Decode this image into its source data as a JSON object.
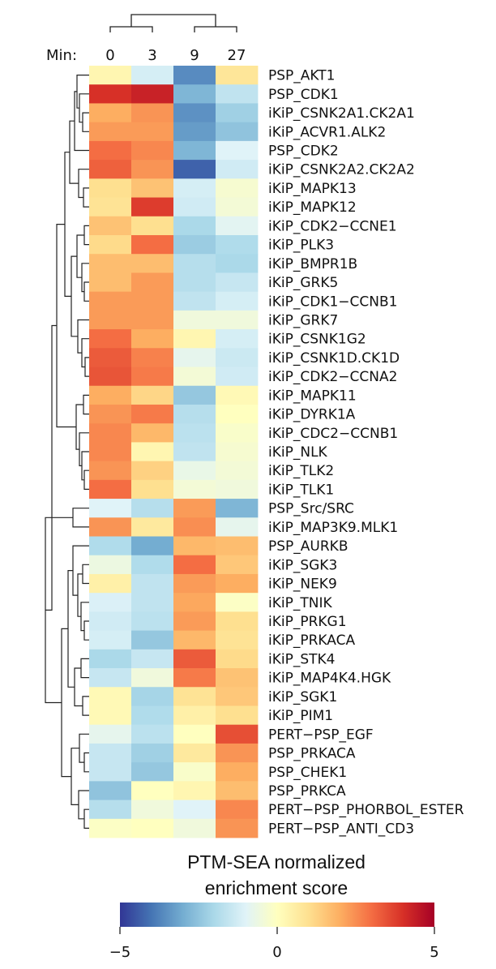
{
  "chart_data": {
    "type": "heatmap",
    "column_axis_label": "Min:",
    "columns": [
      "0",
      "3",
      "9",
      "27"
    ],
    "rows": [
      "PSP_AKT1",
      "PSP_CDK1",
      "iKiP_CSNK2A1.CK2A1",
      "iKiP_ACVR1.ALK2",
      "PSP_CDK2",
      "iKiP_CSNK2A2.CK2A2",
      "iKiP_MAPK13",
      "iKiP_MAPK12",
      "iKiP_CDK2−CCNE1",
      "iKiP_PLK3",
      "iKiP_BMPR1B",
      "iKiP_GRK5",
      "iKiP_CDK1−CCNB1",
      "iKiP_GRK7",
      "iKiP_CSNK1G2",
      "iKiP_CSNK1D.CK1D",
      "iKiP_CDK2−CCNA2",
      "iKiP_MAPK11",
      "iKiP_DYRK1A",
      "iKiP_CDC2−CCNB1",
      "iKiP_NLK",
      "iKiP_TLK2",
      "iKiP_TLK1",
      "PSP_Src/SRC",
      "iKiP_MAP3K9.MLK1",
      "PSP_AURKB",
      "iKiP_SGK3",
      "iKiP_NEK9",
      "iKiP_TNIK",
      "iKiP_PRKG1",
      "iKiP_PRKACA",
      "iKiP_STK4",
      "iKiP_MAP4K4.HGK",
      "iKiP_SGK1",
      "iKiP_PIM1",
      "PERT−PSP_EGF",
      "PSP_PRKACA",
      "PSP_CHEK1",
      "PSP_PRKCA",
      "PERT−PSP_PHORBOL_ESTER",
      "PERT−PSP_ANTI_CD3"
    ],
    "values": [
      [
        0.3,
        -1.2,
        -3.6,
        0.8
      ],
      [
        4.0,
        4.3,
        -2.8,
        -1.6
      ],
      [
        2.0,
        2.4,
        -3.5,
        -2.2
      ],
      [
        2.3,
        2.3,
        -3.3,
        -2.5
      ],
      [
        3.0,
        2.6,
        -2.8,
        -1.0
      ],
      [
        3.2,
        2.4,
        -4.3,
        -1.3
      ],
      [
        1.0,
        1.6,
        -1.2,
        -0.3
      ],
      [
        0.9,
        3.8,
        -1.3,
        -0.4
      ],
      [
        1.6,
        1.0,
        -2.0,
        -0.9
      ],
      [
        1.1,
        3.0,
        -2.3,
        -1.9
      ],
      [
        1.7,
        1.7,
        -1.8,
        -2.0
      ],
      [
        1.7,
        2.3,
        -1.8,
        -1.5
      ],
      [
        2.3,
        2.3,
        -1.6,
        -1.2
      ],
      [
        2.3,
        2.3,
        -0.5,
        -0.5
      ],
      [
        3.0,
        2.0,
        0.3,
        -1.2
      ],
      [
        3.3,
        2.7,
        -0.8,
        -1.4
      ],
      [
        3.4,
        2.8,
        -0.4,
        -1.3
      ],
      [
        2.0,
        1.2,
        -2.4,
        0.2
      ],
      [
        2.4,
        2.8,
        -1.8,
        0.0
      ],
      [
        2.6,
        1.8,
        -1.7,
        -0.2
      ],
      [
        2.6,
        0.3,
        -1.6,
        -0.3
      ],
      [
        2.4,
        1.3,
        -0.7,
        -0.4
      ],
      [
        3.0,
        1.0,
        -0.4,
        -0.5
      ],
      [
        -1.0,
        -1.8,
        2.3,
        -2.8
      ],
      [
        2.4,
        0.7,
        2.5,
        -0.8
      ],
      [
        -1.9,
        -3.0,
        1.8,
        1.7
      ],
      [
        -0.6,
        -1.9,
        3.0,
        1.5
      ],
      [
        0.5,
        -1.6,
        2.3,
        2.0
      ],
      [
        -1.1,
        -1.6,
        2.1,
        -0.1
      ],
      [
        -1.3,
        -1.7,
        2.3,
        1.0
      ],
      [
        -1.2,
        -2.4,
        1.8,
        0.9
      ],
      [
        -2.0,
        -1.5,
        3.3,
        1.1
      ],
      [
        -1.5,
        -0.5,
        2.8,
        1.6
      ],
      [
        0.2,
        -2.1,
        0.9,
        1.5
      ],
      [
        0.2,
        -1.9,
        0.5,
        1.0
      ],
      [
        -0.8,
        -1.7,
        0.0,
        3.5
      ],
      [
        -1.5,
        -2.2,
        0.7,
        2.4
      ],
      [
        -1.5,
        -2.4,
        -0.2,
        2.0
      ],
      [
        -2.5,
        0.0,
        0.3,
        1.7
      ],
      [
        -1.8,
        -0.5,
        -1.0,
        2.6
      ],
      [
        -0.1,
        0.0,
        -0.5,
        2.4
      ]
    ],
    "color_scale": {
      "min": -5,
      "max": 5,
      "stops": [
        "#313695",
        "#4575b4",
        "#74add1",
        "#abd9e9",
        "#e0f3f8",
        "#ffffbf",
        "#fee090",
        "#fdae61",
        "#f46d43",
        "#d73027",
        "#a50026"
      ]
    },
    "legend": {
      "title_line1": "PTM-SEA normalized",
      "title_line2": "enrichment score",
      "ticks": [
        "−5",
        "0",
        "5"
      ]
    }
  }
}
